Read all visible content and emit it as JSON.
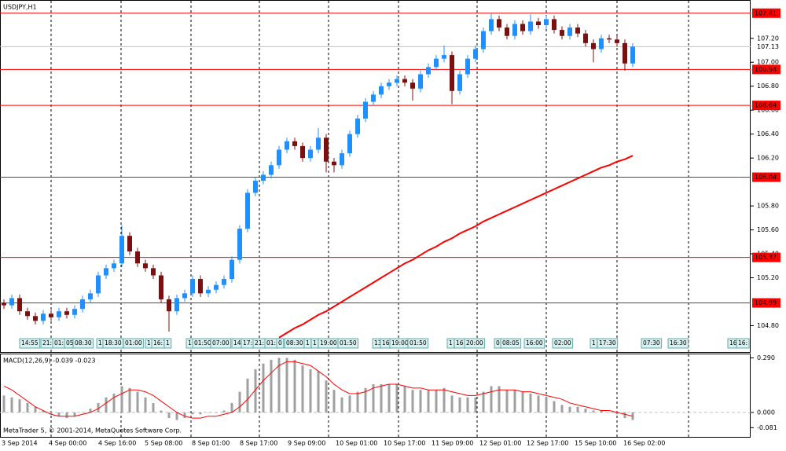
{
  "chart_data": [
    {
      "type": "candlestick",
      "title": "USDJPY,H1",
      "up_color": "#1e90ff",
      "down_color": "#7a1010",
      "ma_color": "#ff0000",
      "hline_color": "#ff0000",
      "open": [
        104.99,
        104.97,
        105.03,
        104.92,
        104.88,
        104.84,
        104.9,
        104.87,
        104.92,
        104.89,
        104.94,
        105.02,
        105.07,
        105.22,
        105.28,
        105.32,
        105.55,
        105.42,
        105.32,
        105.28,
        105.22,
        105.02,
        104.92,
        105.03,
        105.07,
        105.19,
        105.07,
        105.1,
        105.14,
        105.19,
        105.35,
        105.61,
        105.91,
        106.01,
        106.06,
        106.14,
        106.27,
        106.34,
        106.3,
        106.2,
        106.27,
        106.37,
        106.17,
        106.14,
        106.24,
        106.4,
        106.53,
        106.67,
        106.73,
        106.8,
        106.83,
        106.86,
        106.83,
        106.78,
        106.9,
        106.96,
        107.03,
        107.06,
        106.76,
        106.9,
        107.03,
        107.11,
        107.26,
        107.36,
        107.29,
        107.22,
        107.32,
        107.26,
        107.34,
        107.31,
        107.36,
        107.27,
        107.22,
        107.29,
        107.24,
        107.16,
        107.11,
        107.2,
        107.19,
        107.16,
        106.99
      ],
      "high": [
        105.02,
        105.06,
        105.06,
        104.95,
        104.91,
        104.93,
        104.93,
        104.95,
        104.95,
        104.97,
        105.05,
        105.1,
        105.25,
        105.31,
        105.35,
        105.64,
        105.58,
        105.45,
        105.35,
        105.31,
        105.25,
        105.05,
        105.06,
        105.1,
        105.22,
        105.22,
        105.13,
        105.17,
        105.22,
        105.38,
        105.64,
        105.94,
        106.04,
        106.09,
        106.17,
        106.3,
        106.37,
        106.37,
        106.33,
        106.3,
        106.45,
        106.4,
        106.2,
        106.27,
        106.43,
        106.56,
        106.7,
        106.76,
        106.83,
        106.86,
        106.89,
        106.89,
        106.86,
        106.93,
        106.99,
        107.06,
        107.14,
        107.09,
        106.93,
        107.06,
        107.14,
        107.29,
        107.41,
        107.39,
        107.32,
        107.35,
        107.35,
        107.4,
        107.37,
        107.39,
        107.39,
        107.3,
        107.32,
        107.32,
        107.27,
        107.19,
        107.23,
        107.23,
        107.22,
        107.19,
        107.16
      ],
      "low": [
        104.94,
        104.94,
        104.89,
        104.85,
        104.81,
        104.81,
        104.84,
        104.84,
        104.86,
        104.86,
        104.91,
        104.99,
        105.04,
        105.19,
        105.25,
        105.29,
        105.39,
        105.29,
        105.25,
        105.19,
        104.99,
        104.75,
        104.89,
        105.0,
        105.04,
        105.04,
        105.04,
        105.07,
        105.11,
        105.16,
        105.32,
        105.58,
        105.88,
        105.98,
        106.03,
        106.11,
        106.24,
        106.27,
        106.17,
        106.17,
        106.24,
        106.08,
        106.08,
        106.11,
        106.21,
        106.37,
        106.5,
        106.64,
        106.7,
        106.77,
        106.8,
        106.8,
        106.68,
        106.75,
        106.87,
        106.93,
        107.0,
        106.65,
        106.73,
        106.87,
        107.0,
        107.08,
        107.23,
        107.26,
        107.19,
        107.19,
        107.23,
        107.23,
        107.28,
        107.28,
        107.24,
        107.19,
        107.19,
        107.21,
        107.13,
        107.0,
        107.08,
        107.16,
        107.13,
        106.93,
        106.96
      ],
      "close": [
        104.97,
        105.03,
        104.92,
        104.88,
        104.84,
        104.9,
        104.87,
        104.92,
        104.89,
        104.94,
        105.02,
        105.07,
        105.22,
        105.28,
        105.32,
        105.55,
        105.42,
        105.32,
        105.28,
        105.22,
        105.02,
        104.92,
        105.03,
        105.07,
        105.19,
        105.07,
        105.1,
        105.14,
        105.19,
        105.35,
        105.61,
        105.91,
        106.01,
        106.06,
        106.14,
        106.27,
        106.34,
        106.3,
        106.2,
        106.27,
        106.37,
        106.17,
        106.14,
        106.24,
        106.4,
        106.53,
        106.67,
        106.73,
        106.8,
        106.83,
        106.86,
        106.83,
        106.78,
        106.9,
        106.96,
        107.03,
        107.06,
        106.76,
        106.9,
        107.03,
        107.11,
        107.26,
        107.36,
        107.29,
        107.22,
        107.32,
        107.26,
        107.34,
        107.31,
        107.36,
        107.27,
        107.22,
        107.29,
        107.24,
        107.16,
        107.11,
        107.2,
        107.19,
        107.16,
        106.99,
        107.13
      ],
      "ma": [
        null,
        null,
        null,
        null,
        null,
        null,
        null,
        null,
        null,
        null,
        null,
        null,
        null,
        null,
        null,
        null,
        null,
        null,
        null,
        null,
        null,
        null,
        null,
        null,
        null,
        null,
        null,
        null,
        null,
        null,
        null,
        null,
        null,
        null,
        null,
        104.7,
        104.74,
        104.78,
        104.81,
        104.85,
        104.89,
        104.92,
        104.96,
        105.0,
        105.04,
        105.08,
        105.12,
        105.16,
        105.2,
        105.24,
        105.28,
        105.32,
        105.35,
        105.39,
        105.43,
        105.46,
        105.5,
        105.53,
        105.57,
        105.6,
        105.63,
        105.67,
        105.7,
        105.73,
        105.76,
        105.79,
        105.82,
        105.85,
        105.88,
        105.91,
        105.94,
        105.97,
        106.0,
        106.03,
        106.06,
        106.09,
        106.12,
        106.14,
        106.17,
        106.19,
        106.22
      ],
      "hlines": [
        107.41,
        106.94,
        106.64,
        106.04,
        105.37,
        104.99
      ],
      "current_price": 107.13,
      "ylim": [
        104.58,
        107.52
      ],
      "yticks": [
        {
          "value": 104.8,
          "label": "104.80"
        },
        {
          "value": 105.2,
          "label": "105.20"
        },
        {
          "value": 105.4,
          "label": "105.40"
        },
        {
          "value": 105.6,
          "label": "105.60"
        },
        {
          "value": 105.8,
          "label": "105.80"
        },
        {
          "value": 106.2,
          "label": "106.20"
        },
        {
          "value": 106.4,
          "label": "106.40"
        },
        {
          "value": 106.6,
          "label": "106.60"
        },
        {
          "value": 106.8,
          "label": "106.80"
        },
        {
          "value": 107,
          "label": "107.00"
        },
        {
          "value": 107.2,
          "label": "107.20"
        }
      ],
      "event_labels": [
        "14:55",
        "21:",
        "01:",
        "05",
        "08:30",
        "1",
        "18:30",
        "01:00",
        "1",
        "16:1",
        "1",
        "1",
        "01:50",
        "07:00",
        "14",
        "17:",
        "21:",
        "01:",
        "0",
        "08:30",
        "1",
        "1",
        "19:00",
        "01:50",
        "13",
        "16",
        "19:00",
        "01:50",
        "1",
        "16",
        "20:00",
        "0",
        "08:05",
        "16:00",
        "02:00",
        "1",
        "17:30",
        "07:30",
        "16:30",
        "16",
        "16:"
      ],
      "x_labels": [
        "3 Sep 2014",
        "4 Sep 00:00",
        "4 Sep 16:00",
        "5 Sep 08:00",
        "8 Sep 01:00",
        "8 Sep 17:00",
        "9 Sep 09:00",
        "10 Sep 01:00",
        "10 Sep 17:00",
        "11 Sep 09:00",
        "12 Sep 01:00",
        "12 Sep 17:00",
        "15 Sep 10:00",
        "16 Sep 02:00"
      ]
    },
    {
      "type": "macd",
      "title": "MACD(12,26,9) -0.039 -0.023",
      "hist_color": "#a0a0a0",
      "signal_color": "#ff0000",
      "histogram": [
        0.09,
        0.08,
        0.07,
        0.05,
        0.03,
        0.01,
        -0.01,
        -0.02,
        -0.03,
        -0.02,
        0.0,
        0.02,
        0.05,
        0.08,
        0.1,
        0.14,
        0.13,
        0.11,
        0.08,
        0.05,
        0.01,
        -0.03,
        -0.04,
        -0.03,
        -0.01,
        -0.01,
        0.0,
        0.0,
        0.01,
        0.05,
        0.11,
        0.18,
        0.23,
        0.26,
        0.28,
        0.29,
        0.29,
        0.28,
        0.25,
        0.23,
        0.22,
        0.17,
        0.12,
        0.08,
        0.09,
        0.11,
        0.13,
        0.15,
        0.15,
        0.15,
        0.15,
        0.14,
        0.12,
        0.12,
        0.12,
        0.12,
        0.13,
        0.09,
        0.08,
        0.08,
        0.08,
        0.11,
        0.14,
        0.14,
        0.12,
        0.12,
        0.11,
        0.1,
        0.09,
        0.08,
        0.06,
        0.04,
        0.03,
        0.03,
        0.02,
        0.01,
        0.01,
        0.0,
        -0.01,
        -0.03,
        -0.04
      ],
      "signal": [
        0.14,
        0.12,
        0.09,
        0.06,
        0.03,
        0.01,
        -0.01,
        -0.02,
        -0.02,
        -0.02,
        -0.01,
        0.0,
        0.02,
        0.05,
        0.08,
        0.1,
        0.12,
        0.12,
        0.11,
        0.09,
        0.06,
        0.03,
        0.0,
        -0.02,
        -0.03,
        -0.03,
        -0.02,
        -0.02,
        -0.01,
        0.0,
        0.03,
        0.07,
        0.12,
        0.17,
        0.21,
        0.25,
        0.27,
        0.27,
        0.26,
        0.25,
        0.22,
        0.19,
        0.15,
        0.12,
        0.1,
        0.1,
        0.11,
        0.13,
        0.14,
        0.15,
        0.15,
        0.14,
        0.13,
        0.13,
        0.12,
        0.12,
        0.12,
        0.11,
        0.1,
        0.09,
        0.09,
        0.1,
        0.11,
        0.12,
        0.12,
        0.12,
        0.11,
        0.11,
        0.1,
        0.09,
        0.08,
        0.07,
        0.05,
        0.04,
        0.03,
        0.02,
        0.01,
        0.01,
        0.0,
        -0.01,
        -0.02
      ],
      "ylim": [
        -0.13,
        0.309
      ],
      "yticks": [
        {
          "value": 0.29,
          "label": "0.290"
        },
        {
          "value": 0,
          "label": "0.000"
        },
        {
          "value": -0.081,
          "label": "-0.081"
        }
      ]
    }
  ],
  "footer": "MetaTrader 5, © 2001-2014, MetaQuotes Software Corp."
}
